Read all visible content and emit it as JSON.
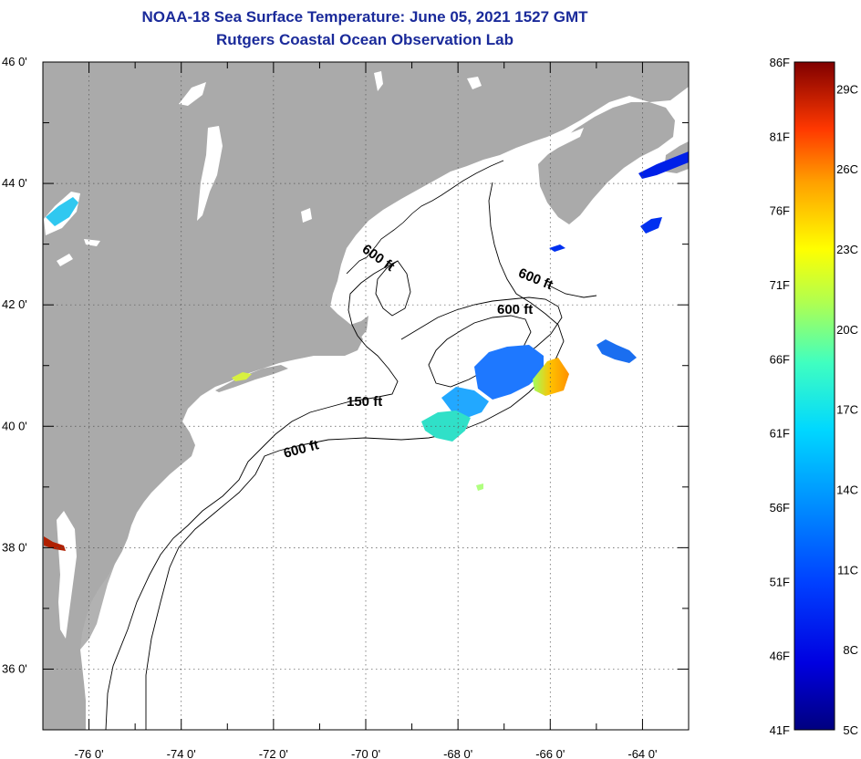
{
  "header": {
    "title": "NOAA-18 Sea Surface Temperature:  June 05, 2021 1527 GMT",
    "subtitle": "Rutgers Coastal Ocean Observation Lab"
  },
  "map": {
    "lon_range": [
      -77,
      -63
    ],
    "lat_range": [
      35,
      46
    ],
    "lat_ticks": [
      "46 0'",
      "44 0'",
      "42 0'",
      "40 0'",
      "38 0'",
      "36 0'"
    ],
    "lon_ticks": [
      "-76 0'",
      "-74 0'",
      "-72 0'",
      "-70 0'",
      "-68 0'",
      "-66 0'",
      "-64 0'"
    ],
    "depth_labels": [
      "600 ft",
      "600 ft",
      "600 ft",
      "150 ft",
      "600 ft"
    ],
    "colors": {
      "land": "#aaaaaa",
      "ocean": "#ffffff",
      "contour": "#000000"
    }
  },
  "legend": {
    "fahrenheit": [
      "86F",
      "81F",
      "76F",
      "71F",
      "66F",
      "61F",
      "56F",
      "51F",
      "46F",
      "41F"
    ],
    "celsius": [
      "29C",
      "26C",
      "23C",
      "20C",
      "17C",
      "14C",
      "11C",
      "8C",
      "5C"
    ]
  }
}
